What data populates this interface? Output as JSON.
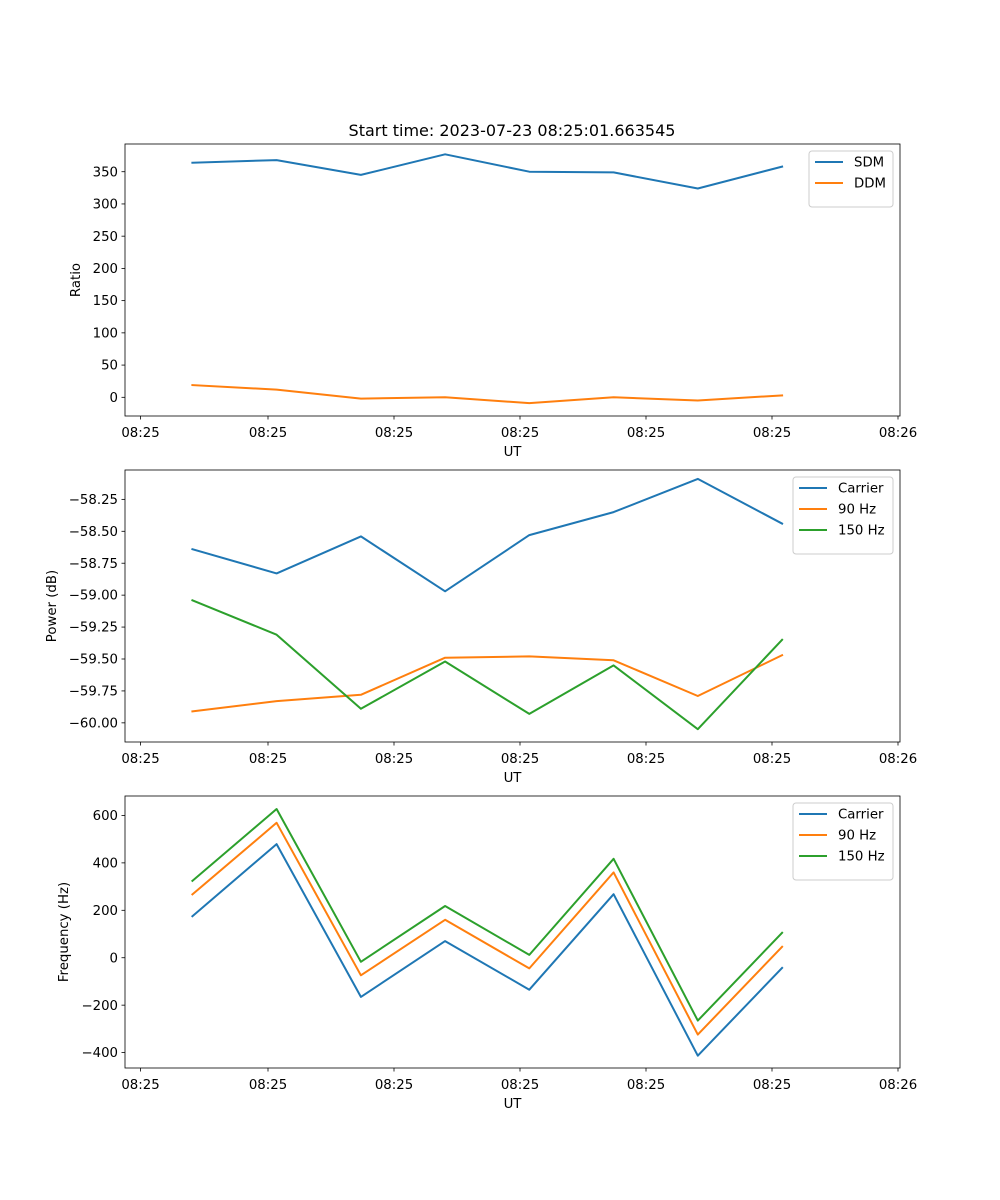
{
  "figure_title": "Start time: 2023-07-23 08:25:01.663545",
  "x_tick_labels": [
    "08:25",
    "08:25",
    "08:25",
    "08:25",
    "08:25",
    "08:25",
    "08:26"
  ],
  "chart_data": [
    {
      "type": "line",
      "title": "Start time: 2023-07-23 08:25:01.663545",
      "xlabel": "UT",
      "ylabel": "Ratio",
      "x": [
        1,
        2,
        3,
        4,
        5,
        6,
        7,
        8
      ],
      "xlim": [
        0.2,
        9.4
      ],
      "ylim": [
        -29,
        393
      ],
      "yticks": [
        0,
        50,
        100,
        150,
        200,
        250,
        300,
        350
      ],
      "ytick_labels": [
        "0",
        "50",
        "100",
        "150",
        "200",
        "250",
        "300",
        "350"
      ],
      "legend_position": "top-right",
      "series": [
        {
          "name": "SDM",
          "color": "#1f77b4",
          "values": [
            364,
            368,
            345,
            377,
            350,
            349,
            324,
            358
          ]
        },
        {
          "name": "DDM",
          "color": "#ff7f0e",
          "values": [
            19,
            12,
            -2,
            0,
            -9,
            0,
            -5,
            3
          ]
        }
      ]
    },
    {
      "type": "line",
      "title": "",
      "xlabel": "UT",
      "ylabel": "Power (dB)",
      "x": [
        1,
        2,
        3,
        4,
        5,
        6,
        7,
        8
      ],
      "xlim": [
        0.2,
        9.4
      ],
      "ylim": [
        -60.15,
        -58.02
      ],
      "yticks": [
        -60.0,
        -59.75,
        -59.5,
        -59.25,
        -59.0,
        -58.75,
        -58.5,
        -58.25
      ],
      "ytick_labels": [
        "−60.00",
        "−59.75",
        "−59.50",
        "−59.25",
        "−59.00",
        "−58.75",
        "−58.50",
        "−58.25"
      ],
      "legend_position": "top-right",
      "series": [
        {
          "name": "Carrier",
          "color": "#1f77b4",
          "values": [
            -58.64,
            -58.83,
            -58.54,
            -58.97,
            -58.53,
            -58.35,
            -58.09,
            -58.44
          ]
        },
        {
          "name": "90 Hz",
          "color": "#ff7f0e",
          "values": [
            -59.91,
            -59.83,
            -59.78,
            -59.49,
            -59.48,
            -59.51,
            -59.79,
            -59.47
          ]
        },
        {
          "name": "150 Hz",
          "color": "#2ca02c",
          "values": [
            -59.04,
            -59.31,
            -59.89,
            -59.52,
            -59.93,
            -59.55,
            -60.05,
            -59.35
          ]
        }
      ]
    },
    {
      "type": "line",
      "title": "",
      "xlabel": "UT",
      "ylabel": "Frequency (Hz)",
      "x": [
        1,
        2,
        3,
        4,
        5,
        6,
        7,
        8
      ],
      "xlim": [
        0.2,
        9.4
      ],
      "ylim": [
        -465,
        682
      ],
      "yticks": [
        -400,
        -200,
        0,
        200,
        400,
        600
      ],
      "ytick_labels": [
        "−400",
        "−200",
        "0",
        "200",
        "400",
        "600"
      ],
      "legend_position": "top-right",
      "series": [
        {
          "name": "Carrier",
          "color": "#1f77b4",
          "values": [
            175,
            479,
            -165,
            70,
            -135,
            268,
            -413,
            -43
          ]
        },
        {
          "name": "90 Hz",
          "color": "#ff7f0e",
          "values": [
            267,
            569,
            -74,
            160,
            -45,
            360,
            -324,
            46
          ]
        },
        {
          "name": "150 Hz",
          "color": "#2ca02c",
          "values": [
            324,
            627,
            -17,
            218,
            12,
            417,
            -265,
            105
          ]
        }
      ]
    }
  ]
}
